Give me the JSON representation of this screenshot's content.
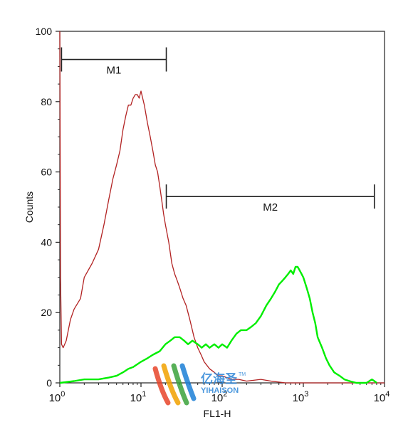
{
  "chart_data": {
    "type": "line",
    "title": "",
    "xlabel": "FL1-H",
    "ylabel": "Counts",
    "xscale": "log",
    "xlim": [
      1,
      10000
    ],
    "ylim": [
      0,
      100
    ],
    "grid": false,
    "x_ticks": [
      {
        "base": "10",
        "exp": "0"
      },
      {
        "base": "10",
        "exp": "1"
      },
      {
        "base": "10",
        "exp": "2"
      },
      {
        "base": "10",
        "exp": "3"
      },
      {
        "base": "10",
        "exp": "4"
      }
    ],
    "y_ticks": [
      "0",
      "20",
      "40",
      "60",
      "80",
      "100"
    ],
    "y_tick_values": [
      0,
      20,
      40,
      60,
      80,
      100
    ],
    "markers": [
      {
        "label": "M1",
        "x_start": 1.05,
        "x_end": 20.5,
        "y": 92
      },
      {
        "label": "M2",
        "x_start": 20.5,
        "x_end": 7500,
        "y": 53
      }
    ],
    "series": [
      {
        "color": "#b22222",
        "points": [
          [
            1.0,
            100
          ],
          [
            1.02,
            30
          ],
          [
            1.05,
            11
          ],
          [
            1.1,
            10
          ],
          [
            1.2,
            12
          ],
          [
            1.35,
            18
          ],
          [
            1.5,
            21
          ],
          [
            1.8,
            24
          ],
          [
            2.0,
            30
          ],
          [
            2.5,
            34
          ],
          [
            3.0,
            38
          ],
          [
            3.5,
            45
          ],
          [
            4.0,
            52
          ],
          [
            4.5,
            58
          ],
          [
            5.0,
            62
          ],
          [
            5.5,
            66
          ],
          [
            6.0,
            72
          ],
          [
            6.5,
            76
          ],
          [
            7.0,
            79
          ],
          [
            7.5,
            79
          ],
          [
            8.0,
            81
          ],
          [
            8.5,
            82
          ],
          [
            9.0,
            82
          ],
          [
            9.5,
            81
          ],
          [
            10,
            83
          ],
          [
            11,
            79
          ],
          [
            12,
            74
          ],
          [
            13,
            70
          ],
          [
            14,
            66
          ],
          [
            15,
            62
          ],
          [
            16,
            60
          ],
          [
            17,
            56
          ],
          [
            18,
            52
          ],
          [
            19,
            48
          ],
          [
            20,
            45
          ],
          [
            22,
            40
          ],
          [
            24,
            34
          ],
          [
            26,
            31
          ],
          [
            28,
            29
          ],
          [
            30,
            27
          ],
          [
            33,
            24
          ],
          [
            36,
            22
          ],
          [
            40,
            18
          ],
          [
            45,
            13
          ],
          [
            50,
            10
          ],
          [
            55,
            8
          ],
          [
            60,
            6
          ],
          [
            70,
            4
          ],
          [
            80,
            3
          ],
          [
            90,
            2
          ],
          [
            100,
            2
          ],
          [
            130,
            1
          ],
          [
            160,
            1
          ],
          [
            200,
            0.5
          ],
          [
            300,
            1
          ],
          [
            400,
            0.5
          ],
          [
            600,
            0
          ],
          [
            1000,
            0
          ],
          [
            10000,
            0
          ]
        ]
      },
      {
        "color": "#00ee00",
        "points": [
          [
            1.0,
            0
          ],
          [
            1.5,
            0.5
          ],
          [
            2.0,
            1
          ],
          [
            3.0,
            1
          ],
          [
            4.0,
            1.5
          ],
          [
            5.0,
            2
          ],
          [
            6.0,
            3
          ],
          [
            7.0,
            4
          ],
          [
            8.0,
            4.5
          ],
          [
            10,
            6
          ],
          [
            12,
            7
          ],
          [
            14,
            8
          ],
          [
            17,
            9
          ],
          [
            20,
            11
          ],
          [
            23,
            12
          ],
          [
            26,
            13
          ],
          [
            30,
            13
          ],
          [
            34,
            12
          ],
          [
            38,
            11
          ],
          [
            43,
            12
          ],
          [
            50,
            11
          ],
          [
            56,
            10
          ],
          [
            63,
            11
          ],
          [
            70,
            10
          ],
          [
            80,
            11
          ],
          [
            90,
            10
          ],
          [
            100,
            11
          ],
          [
            115,
            10
          ],
          [
            130,
            12
          ],
          [
            150,
            14
          ],
          [
            170,
            15
          ],
          [
            200,
            15
          ],
          [
            230,
            16
          ],
          [
            260,
            17
          ],
          [
            300,
            19
          ],
          [
            350,
            22
          ],
          [
            400,
            24
          ],
          [
            450,
            26
          ],
          [
            500,
            28
          ],
          [
            550,
            29
          ],
          [
            600,
            30
          ],
          [
            650,
            31
          ],
          [
            700,
            32
          ],
          [
            750,
            31
          ],
          [
            800,
            33
          ],
          [
            850,
            33
          ],
          [
            900,
            32
          ],
          [
            950,
            31
          ],
          [
            1000,
            30
          ],
          [
            1100,
            27
          ],
          [
            1200,
            24
          ],
          [
            1300,
            20
          ],
          [
            1400,
            17
          ],
          [
            1500,
            13
          ],
          [
            1700,
            10
          ],
          [
            1900,
            7
          ],
          [
            2100,
            5
          ],
          [
            2400,
            3
          ],
          [
            2800,
            2
          ],
          [
            3200,
            1
          ],
          [
            3700,
            0.5
          ],
          [
            4500,
            0
          ],
          [
            6000,
            0
          ],
          [
            7000,
            1
          ],
          [
            7500,
            0.5
          ],
          [
            8000,
            0
          ]
        ]
      }
    ]
  },
  "watermark": {
    "line1": "亿海圣",
    "line2": "YIHAISON",
    "tm": "TM"
  }
}
